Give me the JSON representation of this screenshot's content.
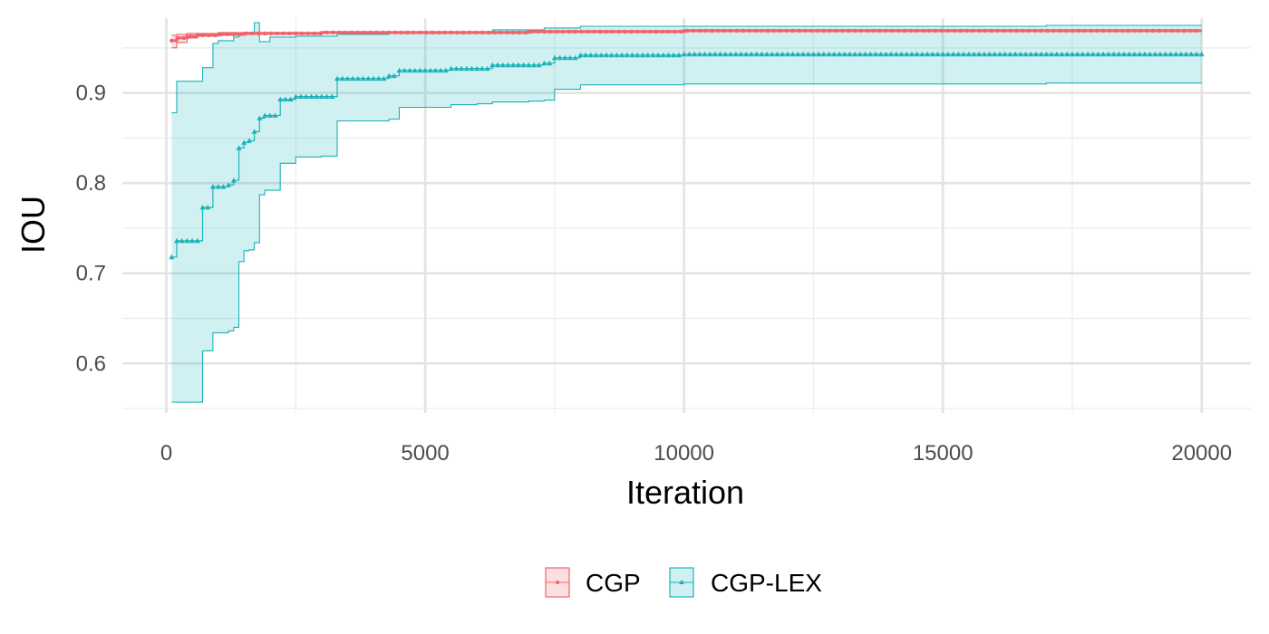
{
  "chart_data": {
    "type": "line",
    "title": "",
    "xlabel": "Iteration",
    "ylabel": "IOU",
    "xlim": [
      -850,
      20950
    ],
    "ylim": [
      0.545,
      0.983
    ],
    "x_ticks": [
      0,
      5000,
      10000,
      15000,
      20000
    ],
    "x_tick_labels": [
      "0",
      "5000",
      "10000",
      "15000",
      "20000"
    ],
    "y_ticks": [
      0.6,
      0.7,
      0.8,
      0.9
    ],
    "y_tick_labels": [
      "0.6",
      "0.7",
      "0.8",
      "0.9"
    ],
    "grid": true,
    "legend_position": "bottom",
    "series": [
      {
        "name": "CGP",
        "color": "#F0636A",
        "marker": "circle",
        "x": [
          100,
          200,
          400,
          600,
          1000,
          1500,
          2000,
          3000,
          5000,
          7000,
          8000,
          10000,
          15000,
          20000
        ],
        "mean": [
          0.958,
          0.961,
          0.963,
          0.964,
          0.965,
          0.966,
          0.966,
          0.967,
          0.967,
          0.968,
          0.968,
          0.969,
          0.969,
          0.969
        ],
        "lower": [
          0.95,
          0.956,
          0.961,
          0.963,
          0.964,
          0.965,
          0.965,
          0.966,
          0.966,
          0.967,
          0.967,
          0.968,
          0.968,
          0.968
        ],
        "upper": [
          0.964,
          0.965,
          0.966,
          0.966,
          0.967,
          0.967,
          0.967,
          0.968,
          0.968,
          0.969,
          0.969,
          0.97,
          0.97,
          0.97
        ]
      },
      {
        "name": "CGP-LEX",
        "color": "#1AB3B8",
        "marker": "triangle",
        "x": [
          100,
          200,
          300,
          400,
          500,
          600,
          700,
          900,
          1000,
          1200,
          1300,
          1400,
          1500,
          1600,
          1700,
          1800,
          1900,
          2000,
          2200,
          2500,
          3000,
          3300,
          4000,
          4300,
          4500,
          5000,
          5500,
          6000,
          6300,
          7000,
          7300,
          7500,
          8000,
          10000,
          13000,
          17000,
          20000
        ],
        "mean": [
          0.718,
          0.736,
          0.736,
          0.736,
          0.736,
          0.736,
          0.773,
          0.796,
          0.796,
          0.798,
          0.803,
          0.839,
          0.845,
          0.847,
          0.857,
          0.872,
          0.875,
          0.875,
          0.893,
          0.896,
          0.896,
          0.916,
          0.916,
          0.919,
          0.925,
          0.925,
          0.927,
          0.927,
          0.931,
          0.931,
          0.933,
          0.939,
          0.942,
          0.943,
          0.943,
          0.943,
          0.943
        ],
        "lower": [
          0.557,
          0.557,
          0.557,
          0.557,
          0.557,
          0.557,
          0.614,
          0.634,
          0.634,
          0.636,
          0.64,
          0.713,
          0.725,
          0.726,
          0.734,
          0.787,
          0.792,
          0.792,
          0.822,
          0.829,
          0.83,
          0.869,
          0.869,
          0.871,
          0.884,
          0.884,
          0.887,
          0.888,
          0.89,
          0.891,
          0.892,
          0.904,
          0.909,
          0.91,
          0.91,
          0.911,
          0.911
        ],
        "upper": [
          0.878,
          0.913,
          0.913,
          0.913,
          0.913,
          0.913,
          0.928,
          0.955,
          0.958,
          0.958,
          0.962,
          0.964,
          0.967,
          0.967,
          0.978,
          0.957,
          0.957,
          0.962,
          0.962,
          0.963,
          0.963,
          0.965,
          0.965,
          0.966,
          0.966,
          0.967,
          0.967,
          0.967,
          0.97,
          0.97,
          0.972,
          0.972,
          0.974,
          0.974,
          0.974,
          0.975,
          0.975
        ]
      }
    ]
  }
}
